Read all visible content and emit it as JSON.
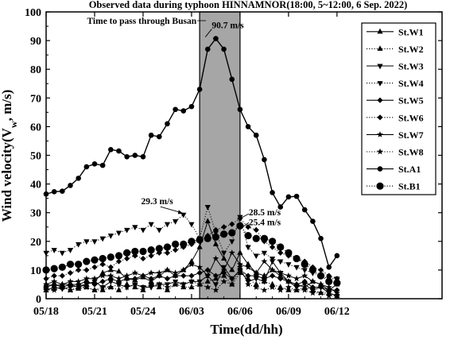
{
  "chart_data": {
    "type": "line",
    "title": "Observed data during typhoon HINNAMNOR(18:00, 5~12:00, 6  Sep. 2022)",
    "xlabel": "Time(dd/hh)",
    "ylabel": "Wind velocity(V",
    "ylabel_sub": "w",
    "ylabel_tail": ", m/s)",
    "ylim": [
      0,
      100
    ],
    "xlim": [
      0,
      24.5
    ],
    "yticks": [
      "0",
      "10",
      "20",
      "30",
      "40",
      "50",
      "60",
      "70",
      "80",
      "90",
      "100"
    ],
    "xticks": [
      {
        "v": 0,
        "label": "05/18"
      },
      {
        "v": 3,
        "label": "05/21"
      },
      {
        "v": 6,
        "label": "05/24"
      },
      {
        "v": 9,
        "label": "06/03"
      },
      {
        "v": 12,
        "label": "06/06"
      },
      {
        "v": 15,
        "label": "06/09"
      },
      {
        "v": 18,
        "label": "06/12"
      }
    ],
    "shade": {
      "from": 9.5,
      "to": 12,
      "label": "Time to pass through Busan"
    },
    "annotations": [
      {
        "text": "90.7 m/s",
        "x": 10.15,
        "y": 90.7
      },
      {
        "text": "29.3 m/s",
        "x": 8.55,
        "y": 29.3
      },
      {
        "text": "28.5 m/s",
        "x": 11.95,
        "y": 28.5
      },
      {
        "text": "25.4 m/s",
        "x": 11.95,
        "y": 25.4
      }
    ],
    "x": [
      0,
      0.5,
      1,
      1.5,
      2,
      2.5,
      3,
      3.5,
      4,
      4.5,
      5,
      5.5,
      6,
      6.5,
      7,
      7.5,
      8,
      8.5,
      9,
      9.5,
      10,
      10.5,
      11,
      11.5,
      12,
      12.5,
      13,
      13.5,
      14,
      14.5,
      15,
      15.5,
      16,
      16.5,
      17,
      17.5,
      18
    ],
    "series": [
      {
        "name": "St.W1",
        "marker": "triangle-up",
        "dash": "solid",
        "values": [
          5,
          4.5,
          5,
          5,
          4,
          5,
          6,
          9,
          10,
          9.5,
          7,
          6.5,
          7.5,
          6,
          8,
          10,
          8,
          10,
          13,
          18,
          27,
          19,
          14,
          10,
          16,
          12,
          9,
          8,
          10,
          8,
          6,
          5,
          4,
          6,
          5,
          3,
          5
        ]
      },
      {
        "name": "St.W2",
        "marker": "triangle-up",
        "dash": "dot",
        "values": [
          3,
          3.5,
          4,
          3,
          3.5,
          4,
          3,
          3,
          4,
          3,
          5,
          4,
          3,
          5,
          4,
          3,
          5,
          4,
          4,
          5,
          6,
          7,
          8,
          5,
          9,
          7,
          5,
          6,
          5,
          4,
          3,
          3,
          4,
          3,
          2,
          2,
          1
        ]
      },
      {
        "name": "St.W3",
        "marker": "triangle-down",
        "dash": "solid",
        "values": [
          3,
          4,
          3.5,
          4,
          4.5,
          5,
          6,
          4,
          6,
          5,
          4,
          5,
          4,
          4,
          5,
          5,
          6,
          5,
          6,
          6,
          8,
          5,
          11,
          7,
          10,
          6,
          7,
          6,
          13,
          9,
          6,
          4,
          5,
          3,
          4,
          2,
          1
        ]
      },
      {
        "name": "St.W4",
        "marker": "triangle-down",
        "dash": "dot",
        "values": [
          16,
          17,
          16,
          17,
          19,
          20,
          20,
          21,
          22,
          23,
          24,
          25,
          24,
          26,
          24,
          26,
          27,
          29.3,
          26,
          21,
          32,
          23,
          16,
          20,
          28.5,
          18,
          15,
          16,
          14,
          13,
          12,
          11,
          10,
          9,
          8,
          7,
          7
        ]
      },
      {
        "name": "St.W5",
        "marker": "diamond",
        "dash": "solid",
        "values": [
          4,
          5,
          4,
          5,
          5,
          6,
          5,
          6,
          7,
          6,
          7,
          7,
          8,
          7,
          8,
          7,
          8,
          8,
          8,
          9,
          10,
          8,
          9,
          7,
          10,
          8,
          8,
          7,
          8,
          7,
          6,
          5,
          6,
          4,
          4,
          3,
          3
        ]
      },
      {
        "name": "St.W6",
        "marker": "diamond",
        "dash": "dot",
        "values": [
          7,
          8,
          8,
          9,
          10,
          10,
          11,
          12,
          11,
          13,
          14,
          15,
          14,
          15,
          16,
          16,
          17,
          18,
          19,
          20,
          22,
          24,
          25,
          26,
          28,
          25,
          24,
          20,
          18,
          16,
          15,
          14,
          13,
          11,
          10,
          8,
          7
        ]
      },
      {
        "name": "St.W7",
        "marker": "star",
        "dash": "solid",
        "values": [
          5,
          6,
          5,
          6,
          6,
          7,
          7,
          8,
          8,
          7,
          8,
          9,
          8,
          9,
          9,
          10,
          9,
          10,
          12,
          11,
          8,
          14,
          10,
          16,
          12,
          11,
          9,
          13,
          10,
          9,
          8,
          7,
          8,
          6,
          5,
          4,
          2
        ]
      },
      {
        "name": "St.W8",
        "marker": "star",
        "dash": "dot",
        "values": [
          3,
          3,
          4,
          3,
          4,
          4,
          3,
          4,
          4,
          5,
          4,
          5,
          4,
          5,
          5,
          4,
          5,
          5,
          6,
          5,
          4,
          3,
          6,
          5,
          11,
          5,
          4,
          3,
          4,
          3,
          4,
          3,
          3,
          2,
          2,
          1,
          1
        ]
      },
      {
        "name": "St.A1",
        "marker": "circle",
        "dash": "solid",
        "values": [
          36.5,
          37.3,
          37.5,
          39.5,
          42,
          46,
          47,
          46.5,
          52,
          51.5,
          49.5,
          50,
          49.5,
          57,
          56.5,
          61,
          66,
          65.5,
          67,
          73,
          87,
          90.7,
          87,
          76.5,
          66,
          60,
          57,
          48.5,
          37,
          32,
          35.5,
          35.7,
          31,
          27,
          21,
          11,
          15
        ]
      },
      {
        "name": "St.B1",
        "marker": "circle-big",
        "dash": "dot",
        "values": [
          10,
          10.5,
          11,
          12,
          12,
          13,
          13.5,
          14,
          14.5,
          15,
          16,
          16.5,
          16.5,
          17,
          17.5,
          18,
          19,
          19,
          20,
          20.5,
          21,
          21.5,
          22.5,
          23,
          25.4,
          22,
          21,
          21,
          20,
          18,
          16,
          14,
          12,
          10,
          8,
          6,
          5.5
        ]
      }
    ],
    "legend_position": "right-inside",
    "grid": false
  }
}
